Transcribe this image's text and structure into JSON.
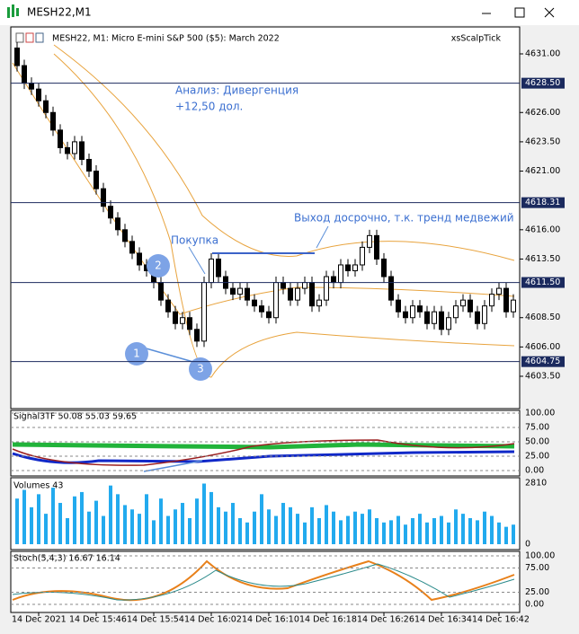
{
  "window": {
    "title": "MESH22,M1"
  },
  "chart": {
    "header": "MESH22, M1:  Micro E-mini S&P 500 ($5): March 2022",
    "indicator": "xsScalpTick",
    "price_labels": [
      {
        "value": 4631,
        "label": "4631.00"
      },
      {
        "value": 4626,
        "label": "4626.00"
      },
      {
        "value": 4623.5,
        "label": "4623.50"
      },
      {
        "value": 4621,
        "label": "4621.00"
      },
      {
        "value": 4616,
        "label": "4616.00"
      },
      {
        "value": 4613.5,
        "label": "4613.50"
      },
      {
        "value": 4608.5,
        "label": "4608.50"
      },
      {
        "value": 4606,
        "label": "4606.00"
      },
      {
        "value": 4603.5,
        "label": "4603.50"
      }
    ],
    "levels": [
      {
        "value": 4628.5,
        "label": "4628.50"
      },
      {
        "value": 4618.31,
        "label": "4618.31"
      },
      {
        "value": 4611.5,
        "label": "4611.50"
      },
      {
        "value": 4604.75,
        "label": "4604.75"
      }
    ],
    "annotations": {
      "analysis": "Анализ: Дивергенция",
      "profit": "+12,50 дол.",
      "buy": "Покупка",
      "exit": "Выход досрочно, т.к. тренд медвежий",
      "markers": [
        "1",
        "2",
        "3"
      ]
    },
    "candles": {
      "open": [
        4631.5,
        4630,
        4628.5,
        4628,
        4627,
        4626,
        4624.5,
        4623,
        4622.5,
        4623.5,
        4622,
        4621,
        4619.5,
        4618,
        4617,
        4616,
        4615,
        4614,
        4613,
        4612.5,
        4611.5,
        4610,
        4609,
        4608,
        4608.5,
        4607.5,
        4606.5,
        4611.5,
        4613.5,
        4612,
        4611,
        4610.5,
        4611,
        4610,
        4609.5,
        4609,
        4608.5,
        4611.5,
        4611,
        4610,
        4611,
        4611.5,
        4609.5,
        4610,
        4612,
        4611.5,
        4613,
        4612.5,
        4613,
        4614.5,
        4615.5,
        4613.5,
        4612,
        4610,
        4609,
        4608.5,
        4609.5,
        4609,
        4608,
        4609,
        4607.5,
        4608.5,
        4609.5,
        4610,
        4609,
        4608,
        4609.5,
        4610.5,
        4611,
        4609
      ],
      "high": [
        4632,
        4630.5,
        4629,
        4628.5,
        4627.5,
        4626.5,
        4625,
        4623.5,
        4624,
        4624,
        4622.5,
        4621.5,
        4620,
        4618.5,
        4617.5,
        4616.5,
        4615.5,
        4614.5,
        4613.5,
        4613,
        4612,
        4610.5,
        4609.5,
        4609,
        4609,
        4608,
        4612,
        4614,
        4614,
        4612.5,
        4611.5,
        4611.5,
        4611.5,
        4610.5,
        4610,
        4609.5,
        4612,
        4612,
        4611.5,
        4611.5,
        4612,
        4612,
        4610.5,
        4612.5,
        4612.5,
        4613.5,
        4613.5,
        4613.5,
        4615,
        4616,
        4616,
        4614,
        4612.5,
        4610.5,
        4609.5,
        4610,
        4610,
        4609.5,
        4609.5,
        4609.5,
        4609,
        4610,
        4610.5,
        4610.5,
        4609.5,
        4610,
        4611,
        4611.5,
        4611.5,
        4610.5
      ],
      "low": [
        4629.5,
        4628,
        4627.5,
        4626.5,
        4625.5,
        4624,
        4622.5,
        4622,
        4622,
        4621.5,
        4620.5,
        4619,
        4617.5,
        4616.5,
        4615.5,
        4614.5,
        4613.5,
        4612.5,
        4612,
        4611,
        4609.5,
        4608.5,
        4607.5,
        4607.5,
        4607,
        4606,
        4606,
        4611,
        4611.5,
        4610.5,
        4610,
        4610,
        4609.5,
        4609,
        4608.5,
        4608,
        4608,
        4610.5,
        4609.5,
        4609.5,
        4610.5,
        4609,
        4609,
        4609.5,
        4611,
        4611,
        4612,
        4612,
        4612.5,
        4614,
        4613,
        4611.5,
        4609.5,
        4608.5,
        4608,
        4608,
        4608.5,
        4607.5,
        4607.5,
        4607,
        4607,
        4608,
        4609,
        4608.5,
        4607.5,
        4607.5,
        4609,
        4610,
        4608.5,
        4608.5
      ],
      "close": [
        4630,
        4628.5,
        4628,
        4627,
        4626,
        4624.5,
        4623,
        4622.5,
        4623.5,
        4622,
        4621,
        4619.5,
        4618,
        4617,
        4616,
        4615,
        4614,
        4613,
        4612.5,
        4611.5,
        4610,
        4609,
        4608,
        4608.5,
        4607.5,
        4606.5,
        4611.5,
        4613.5,
        4612,
        4611,
        4610.5,
        4611,
        4610,
        4609.5,
        4609,
        4608.5,
        4611.5,
        4611,
        4610,
        4611,
        4611.5,
        4609.5,
        4610,
        4612,
        4611.5,
        4613,
        4612.5,
        4613,
        4614.5,
        4615.5,
        4613.5,
        4612,
        4610,
        4609,
        4608.5,
        4609.5,
        4609,
        4608,
        4609,
        4607.5,
        4608.5,
        4609.5,
        4610,
        4609,
        4608,
        4609.5,
        4610.5,
        4611,
        4609,
        4610
      ]
    }
  },
  "signal_panel": {
    "label": "Signal3TF 50.08 55.03 59.65",
    "ticks": [
      {
        "value": 100,
        "label": "100.00"
      },
      {
        "value": 75,
        "label": "75.00"
      },
      {
        "value": 50,
        "label": "50.00"
      },
      {
        "value": 25,
        "label": "25.00"
      },
      {
        "value": 0,
        "label": "0.00"
      }
    ]
  },
  "volume_panel": {
    "label": "Volumes 43",
    "ylim": [
      0,
      2810
    ],
    "yticks": [
      2810,
      0
    ],
    "values": [
      2100,
      2500,
      1700,
      2300,
      1400,
      2600,
      1900,
      1200,
      2200,
      2400,
      1500,
      2000,
      1300,
      2700,
      2300,
      1800,
      1600,
      1400,
      2300,
      1100,
      2100,
      1300,
      1600,
      1900,
      1200,
      2100,
      2790,
      2400,
      1700,
      1500,
      1900,
      1200,
      1000,
      1500,
      2300,
      1600,
      1300,
      1900,
      1700,
      1400,
      1000,
      1700,
      1200,
      1800,
      1500,
      1100,
      1300,
      1500,
      1400,
      1600,
      1200,
      1000,
      1100,
      1300,
      900,
      1200,
      1400,
      1000,
      1200,
      1300,
      1000,
      1600,
      1400,
      1200,
      1100,
      1500,
      1300,
      1000,
      800,
      900
    ]
  },
  "stoch_panel": {
    "label": "Stoch(5,4,3) 16.67 16.14",
    "ticks": [
      {
        "value": 100,
        "label": "100.00"
      },
      {
        "value": 75,
        "label": "75.00"
      },
      {
        "value": 25,
        "label": "25.00"
      },
      {
        "value": 0,
        "label": "0.00"
      }
    ]
  },
  "time_labels": [
    "14 Dec 2021",
    "14 Dec 15:46",
    "14 Dec 15:54",
    "14 Dec 16:02",
    "14 Dec 16:10",
    "14 Dec 16:18",
    "14 Dec 16:26",
    "14 Dec 16:34",
    "14 Dec 16:42"
  ]
}
